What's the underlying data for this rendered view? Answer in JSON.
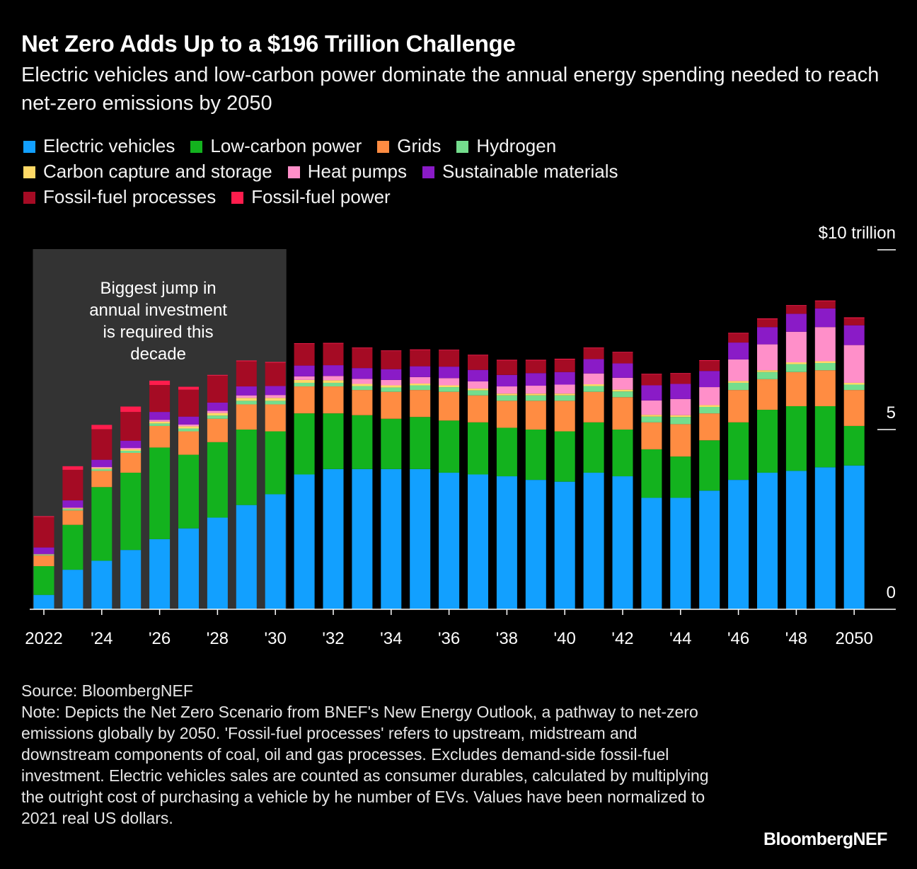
{
  "title": "Net Zero Adds Up to a $196 Trillion Challenge",
  "subtitle": "Electric vehicles and low-carbon power dominate the annual energy spending needed to reach net-zero emissions by 2050",
  "legend_rows": [
    [
      "Electric vehicles",
      "Low-carbon power",
      "Grids",
      "Hydrogen"
    ],
    [
      "Carbon capture and storage",
      "Heat pumps",
      "Sustainable materials"
    ],
    [
      "Fossil-fuel processes",
      "Fossil-fuel power"
    ]
  ],
  "annotation": {
    "lines": [
      "Biggest jump in",
      "annual investment",
      "is required this",
      "decade"
    ],
    "range": [
      "2022",
      "2030"
    ]
  },
  "source": "Source: BloombergNEF",
  "note": "Note: Depicts the Net Zero Scenario from BNEF's New Energy Outlook, a pathway to net-zero emissions globally by 2050. 'Fossil-fuel processes' refers to upstream, midstream and downstream components of coal, oil and gas processes. Excludes demand-side fossil-fuel investment. Electric vehicles sales are counted as consumer durables, calculated by multiplying the outright cost of purchasing a vehicle by he number of EVs. Values have been normalized to 2021 real US dollars.",
  "brand": "BloombergNEF",
  "chart_data": {
    "type": "bar",
    "stacked": true,
    "title": "Net Zero Adds Up to a $196 Trillion Challenge",
    "ylabel": "$ trillion",
    "ylim": [
      0,
      10
    ],
    "yticks": [
      0,
      5,
      10
    ],
    "ytick_labels": [
      "0",
      "5",
      "$10 trillion"
    ],
    "categories": [
      "2022",
      "2023",
      "2024",
      "2025",
      "2026",
      "2027",
      "2028",
      "2029",
      "2030",
      "2031",
      "2032",
      "2033",
      "2034",
      "2035",
      "2036",
      "2037",
      "2038",
      "2039",
      "2040",
      "2041",
      "2042",
      "2043",
      "2044",
      "2045",
      "2046",
      "2047",
      "2048",
      "2049",
      "2050"
    ],
    "xtick_labels": {
      "2022": "2022",
      "2024": "'24",
      "2026": "'26",
      "2028": "'28",
      "2030": "'30",
      "2032": "'32",
      "2034": "'34",
      "2036": "'36",
      "2038": "'38",
      "2040": "'40",
      "2042": "'42",
      "2044": "'44",
      "2046": "'46",
      "2048": "'48",
      "2050": "2050"
    },
    "series": [
      {
        "name": "Electric vehicles",
        "color": "#12a0ff",
        "values": [
          0.4,
          1.1,
          1.35,
          1.65,
          1.95,
          2.25,
          2.55,
          2.9,
          3.2,
          3.75,
          3.9,
          3.9,
          3.9,
          3.9,
          3.8,
          3.75,
          3.7,
          3.6,
          3.55,
          3.8,
          3.7,
          3.1,
          3.1,
          3.3,
          3.6,
          3.8,
          3.85,
          3.95,
          4.0
        ]
      },
      {
        "name": "Low-carbon power",
        "color": "#13b21e",
        "values": [
          0.8,
          1.25,
          2.05,
          2.15,
          2.55,
          2.05,
          2.1,
          2.1,
          1.75,
          1.7,
          1.55,
          1.5,
          1.4,
          1.45,
          1.45,
          1.45,
          1.35,
          1.4,
          1.4,
          1.4,
          1.3,
          1.35,
          1.15,
          1.4,
          1.6,
          1.75,
          1.8,
          1.7,
          1.1
        ]
      },
      {
        "name": "Grids",
        "color": "#ff8c42",
        "values": [
          0.3,
          0.4,
          0.45,
          0.55,
          0.6,
          0.65,
          0.65,
          0.7,
          0.75,
          0.75,
          0.75,
          0.7,
          0.75,
          0.75,
          0.8,
          0.75,
          0.75,
          0.8,
          0.85,
          0.85,
          0.9,
          0.75,
          0.9,
          0.75,
          0.9,
          0.85,
          0.95,
          1.0,
          1.0
        ]
      },
      {
        "name": "Hydrogen",
        "color": "#74dd8d",
        "values": [
          0.02,
          0.04,
          0.05,
          0.06,
          0.07,
          0.08,
          0.09,
          0.1,
          0.1,
          0.1,
          0.1,
          0.11,
          0.12,
          0.13,
          0.13,
          0.14,
          0.15,
          0.15,
          0.15,
          0.16,
          0.16,
          0.16,
          0.2,
          0.18,
          0.2,
          0.2,
          0.22,
          0.2,
          0.15
        ]
      },
      {
        "name": "Carbon capture and storage",
        "color": "#ffd966",
        "values": [
          0.01,
          0.02,
          0.03,
          0.04,
          0.05,
          0.06,
          0.07,
          0.08,
          0.08,
          0.08,
          0.07,
          0.06,
          0.06,
          0.05,
          0.05,
          0.05,
          0.05,
          0.05,
          0.05,
          0.05,
          0.05,
          0.05,
          0.05,
          0.05,
          0.05,
          0.05,
          0.05,
          0.05,
          0.05
        ]
      },
      {
        "name": "Heat pumps",
        "color": "#ff8fc9",
        "values": [
          0.01,
          0.02,
          0.03,
          0.04,
          0.05,
          0.05,
          0.06,
          0.07,
          0.08,
          0.1,
          0.12,
          0.14,
          0.15,
          0.18,
          0.2,
          0.2,
          0.2,
          0.22,
          0.25,
          0.3,
          0.33,
          0.4,
          0.45,
          0.5,
          0.6,
          0.72,
          0.85,
          0.95,
          1.05
        ]
      },
      {
        "name": "Sustainable materials",
        "color": "#8a1bc7",
        "values": [
          0.18,
          0.2,
          0.2,
          0.2,
          0.22,
          0.22,
          0.23,
          0.25,
          0.25,
          0.3,
          0.3,
          0.3,
          0.3,
          0.3,
          0.32,
          0.32,
          0.32,
          0.35,
          0.35,
          0.4,
          0.4,
          0.42,
          0.42,
          0.45,
          0.47,
          0.48,
          0.5,
          0.52,
          0.55
        ]
      },
      {
        "name": "Fossil-fuel processes",
        "color": "#a50b24",
        "values": [
          0.85,
          0.85,
          0.85,
          0.8,
          0.75,
          0.75,
          0.75,
          0.7,
          0.65,
          0.6,
          0.6,
          0.55,
          0.5,
          0.45,
          0.45,
          0.4,
          0.4,
          0.35,
          0.35,
          0.3,
          0.3,
          0.3,
          0.28,
          0.28,
          0.25,
          0.22,
          0.22,
          0.2,
          0.2
        ]
      },
      {
        "name": "Fossil-fuel power",
        "color": "#ff1d4d",
        "values": [
          0.02,
          0.1,
          0.12,
          0.15,
          0.12,
          0.08,
          0.02,
          0.02,
          0.02,
          0.02,
          0.02,
          0.02,
          0.02,
          0.02,
          0.02,
          0.02,
          0.02,
          0.02,
          0.02,
          0.02,
          0.02,
          0.02,
          0.02,
          0.02,
          0.02,
          0.02,
          0.02,
          0.02,
          0.02
        ]
      }
    ]
  }
}
